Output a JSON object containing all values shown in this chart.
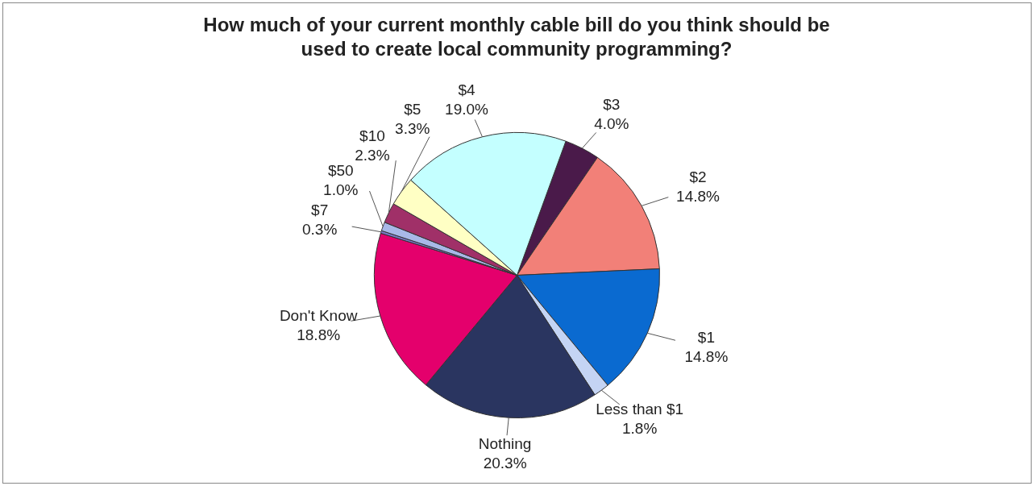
{
  "chart_data": {
    "type": "pie",
    "title": "How much of your current monthly cable bill do you think should be used to create local community programming?",
    "categories": [
      "$3",
      "$2",
      "$1",
      "Less than $1",
      "Nothing",
      "Don't Know",
      "$7",
      "$50",
      "$10",
      "$5",
      "$4"
    ],
    "values": [
      4.0,
      14.8,
      14.8,
      1.8,
      20.3,
      18.8,
      0.3,
      1.0,
      2.3,
      3.3,
      19.0
    ],
    "value_labels": [
      "4.0%",
      "14.8%",
      "14.8%",
      "1.8%",
      "20.3%",
      "18.8%",
      "0.3%",
      "1.0%",
      "2.3%",
      "3.3%",
      "19.0%"
    ],
    "colors": [
      "#4a1a4a",
      "#f28078",
      "#0a6ad0",
      "#c4d4f4",
      "#2a3560",
      "#e4006c",
      "#7a78c8",
      "#a8b8e8",
      "#a03068",
      "#ffffc4",
      "#c4ffff"
    ],
    "legend": false
  }
}
